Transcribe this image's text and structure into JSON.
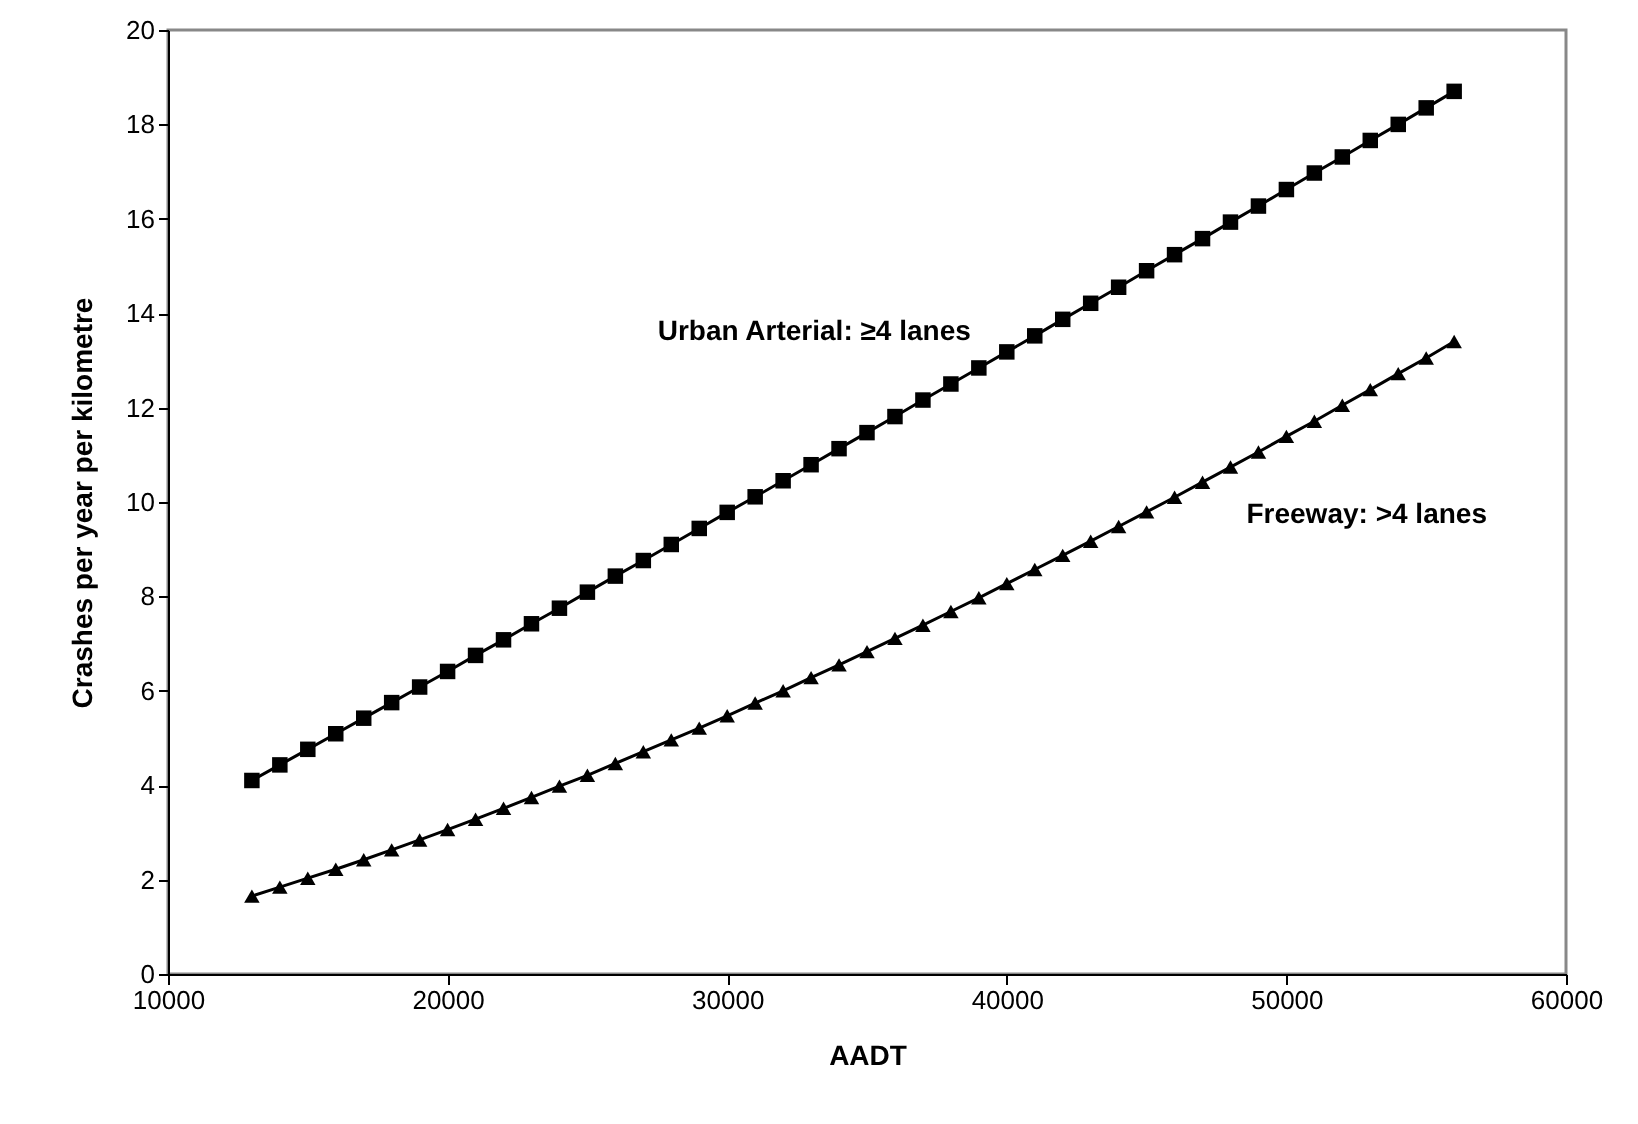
{
  "chart_data": {
    "type": "line",
    "xlabel": "AADT",
    "ylabel": "Crashes per year per kilometre",
    "x": [
      13000,
      14000,
      15000,
      16000,
      17000,
      18000,
      19000,
      20000,
      21000,
      22000,
      23000,
      24000,
      25000,
      26000,
      27000,
      28000,
      29000,
      30000,
      31000,
      32000,
      33000,
      34000,
      35000,
      36000,
      37000,
      38000,
      39000,
      40000,
      41000,
      42000,
      43000,
      44000,
      45000,
      46000,
      47000,
      48000,
      49000,
      50000,
      51000,
      52000,
      53000,
      54000,
      55000,
      56000
    ],
    "series": [
      {
        "name": "Urban Arterial: ≥4 lanes",
        "color": "#000000",
        "marker": "square",
        "values": [
          4.1,
          4.43,
          4.76,
          5.09,
          5.42,
          5.75,
          6.08,
          6.41,
          6.75,
          7.08,
          7.42,
          7.75,
          8.09,
          8.43,
          8.76,
          9.1,
          9.44,
          9.78,
          10.11,
          10.45,
          10.79,
          11.13,
          11.47,
          11.81,
          12.16,
          12.5,
          12.84,
          13.18,
          13.52,
          13.87,
          14.21,
          14.55,
          14.9,
          15.24,
          15.58,
          15.93,
          16.27,
          16.62,
          16.97,
          17.31,
          17.66,
          18.0,
          18.35,
          18.7
        ]
      },
      {
        "name": "Freeway: >4 lanes",
        "color": "#000000",
        "marker": "triangle",
        "values": [
          1.65,
          1.84,
          2.03,
          2.22,
          2.42,
          2.63,
          2.84,
          3.06,
          3.28,
          3.51,
          3.74,
          3.98,
          4.21,
          4.46,
          4.71,
          4.96,
          5.21,
          5.47,
          5.74,
          6.0,
          6.28,
          6.55,
          6.83,
          7.11,
          7.39,
          7.68,
          7.97,
          8.27,
          8.57,
          8.87,
          9.17,
          9.48,
          9.79,
          10.1,
          10.42,
          10.74,
          11.06,
          11.39,
          11.71,
          12.05,
          12.38,
          12.72,
          13.05,
          13.4
        ]
      }
    ],
    "xlim": [
      10000,
      60000
    ],
    "xticks": [
      10000,
      20000,
      30000,
      40000,
      50000,
      60000
    ],
    "ylim": [
      0,
      20
    ],
    "yticks": [
      0,
      2,
      4,
      6,
      8,
      10,
      12,
      14,
      16,
      18,
      20
    ],
    "grid": false,
    "legend": false,
    "line_style": "solid"
  }
}
